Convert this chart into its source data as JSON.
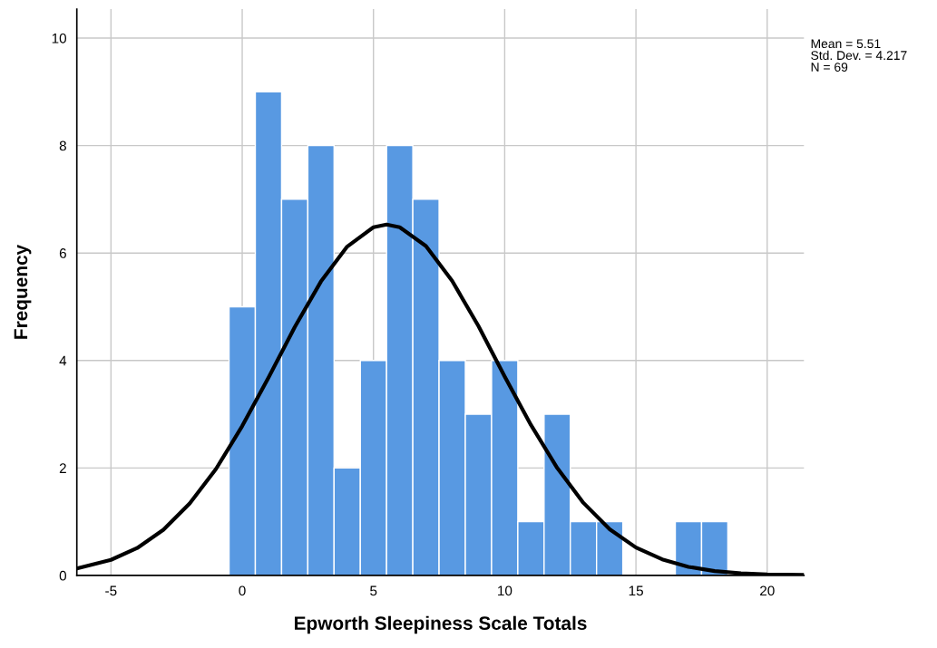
{
  "chart_data": {
    "type": "histogram",
    "xlabel": "Epworth Sleepiness Scale Totals",
    "ylabel": "Frequency",
    "annotations": [
      "Mean = 5.51",
      "Std. Dev. = 4.217",
      "N = 69"
    ],
    "series": [
      {
        "color": "#5899e2",
        "bins": [
          -0.5,
          0.5,
          1.5,
          2.5,
          3.5,
          4.5,
          5.5,
          6.5,
          7.5,
          8.5,
          9.5,
          10.5,
          11.5,
          12.5,
          13.5,
          14.5,
          15.5,
          16.5,
          17.5,
          18.5
        ],
        "values": [
          5,
          9,
          7,
          8,
          2,
          4,
          8,
          7,
          4,
          3,
          4,
          1,
          3,
          1,
          1,
          0,
          0,
          1,
          1
        ]
      },
      {
        "type": "line",
        "color": "#000000",
        "x": [
          -6.3,
          -5,
          -4,
          -3,
          -2,
          -1,
          0,
          1,
          2,
          3,
          4,
          5,
          5.5,
          6,
          7,
          8,
          9,
          10,
          11,
          12,
          13,
          14,
          15,
          16,
          17,
          18,
          19,
          20,
          21.4
        ],
        "values": [
          0.13,
          0.29,
          0.51,
          0.85,
          1.34,
          1.98,
          2.78,
          3.68,
          4.62,
          5.47,
          6.12,
          6.48,
          6.53,
          6.48,
          6.13,
          5.48,
          4.64,
          3.7,
          2.8,
          2.0,
          1.35,
          0.86,
          0.52,
          0.3,
          0.16,
          0.08,
          0.04,
          0.02,
          0.01
        ]
      }
    ],
    "xlim": [
      -6.3,
      21.4
    ],
    "ylim": [
      0,
      10.54
    ],
    "xticks": [
      -5,
      0,
      5,
      10,
      15,
      20
    ],
    "yticks": [
      0,
      2,
      4,
      6,
      8,
      10
    ],
    "grid": true,
    "legend": false
  }
}
